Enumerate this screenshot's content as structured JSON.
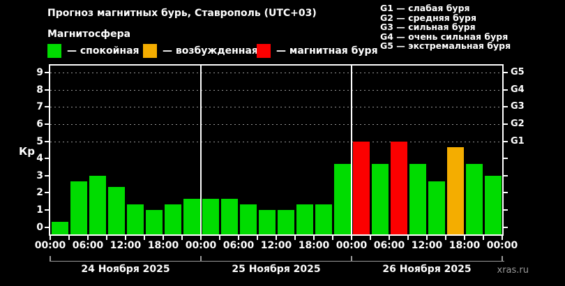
{
  "title": "Прогноз магнитных бурь, Ставрополь (UTC+03)",
  "subtitle": "Магнитосфера",
  "watermark": "xras.ru",
  "magnetosphere_legend": [
    {
      "status": "quiet",
      "label": "— спокойная",
      "color": "#00dc00"
    },
    {
      "status": "excited",
      "label": "— возбужденная",
      "color": "#f4ad00"
    },
    {
      "status": "storm",
      "label": "— магнитная буря",
      "color": "#fb0000"
    }
  ],
  "g_scale_legend": [
    "G1 — слабая буря",
    "G2 — средняя буря",
    "G3 — сильная буря",
    "G4 — очень сильная буря",
    "G5 — экстремальная буря"
  ],
  "chart_data": {
    "type": "bar",
    "title": "Прогноз магнитных бурь, Ставрополь (UTC+03)",
    "ylabel": "Кр",
    "ylim": [
      0,
      9
    ],
    "yticks": [
      0,
      1,
      2,
      3,
      4,
      5,
      6,
      7,
      8,
      9
    ],
    "gridlines_at_kp": [
      5,
      6,
      7,
      8,
      9
    ],
    "grid": "dashed horizontal at G-levels only",
    "legend_position": "top",
    "right_axis_labels": [
      {
        "kp": 5,
        "label": "G1"
      },
      {
        "kp": 6,
        "label": "G2"
      },
      {
        "kp": 7,
        "label": "G3"
      },
      {
        "kp": 8,
        "label": "G4"
      },
      {
        "kp": 9,
        "label": "G5"
      }
    ],
    "x_axis_time_labels": [
      "00:00",
      "06:00",
      "12:00",
      "18:00",
      "00:00",
      "06:00",
      "12:00",
      "18:00",
      "00:00",
      "06:00",
      "12:00",
      "18:00",
      "00:00"
    ],
    "bar_duration_hours": 3,
    "status_colors": {
      "quiet": "#00dc00",
      "excited": "#f4ad00",
      "storm": "#fb0000"
    },
    "days": [
      {
        "date": "24 Ноября 2025",
        "bars": [
          {
            "time": "00:00",
            "kp": 0.33,
            "status": "quiet"
          },
          {
            "time": "03:00",
            "kp": 2.67,
            "status": "quiet"
          },
          {
            "time": "06:00",
            "kp": 3.0,
            "status": "quiet"
          },
          {
            "time": "09:00",
            "kp": 2.33,
            "status": "quiet"
          },
          {
            "time": "12:00",
            "kp": 1.33,
            "status": "quiet"
          },
          {
            "time": "15:00",
            "kp": 1.0,
            "status": "quiet"
          },
          {
            "time": "18:00",
            "kp": 1.33,
            "status": "quiet"
          },
          {
            "time": "21:00",
            "kp": 1.67,
            "status": "quiet"
          }
        ]
      },
      {
        "date": "25 Ноября 2025",
        "bars": [
          {
            "time": "00:00",
            "kp": 1.67,
            "status": "quiet"
          },
          {
            "time": "03:00",
            "kp": 1.67,
            "status": "quiet"
          },
          {
            "time": "06:00",
            "kp": 1.33,
            "status": "quiet"
          },
          {
            "time": "09:00",
            "kp": 1.0,
            "status": "quiet"
          },
          {
            "time": "12:00",
            "kp": 1.0,
            "status": "quiet"
          },
          {
            "time": "15:00",
            "kp": 1.33,
            "status": "quiet"
          },
          {
            "time": "18:00",
            "kp": 1.33,
            "status": "quiet"
          },
          {
            "time": "21:00",
            "kp": 3.67,
            "status": "quiet"
          }
        ]
      },
      {
        "date": "26 Ноября 2025",
        "bars": [
          {
            "time": "00:00",
            "kp": 5.0,
            "status": "storm"
          },
          {
            "time": "03:00",
            "kp": 3.67,
            "status": "quiet"
          },
          {
            "time": "06:00",
            "kp": 5.0,
            "status": "storm"
          },
          {
            "time": "09:00",
            "kp": 3.67,
            "status": "quiet"
          },
          {
            "time": "12:00",
            "kp": 2.67,
            "status": "quiet"
          },
          {
            "time": "15:00",
            "kp": 4.67,
            "status": "excited"
          },
          {
            "time": "18:00",
            "kp": 3.67,
            "status": "quiet"
          },
          {
            "time": "21:00",
            "kp": 3.0,
            "status": "quiet"
          }
        ]
      }
    ]
  }
}
